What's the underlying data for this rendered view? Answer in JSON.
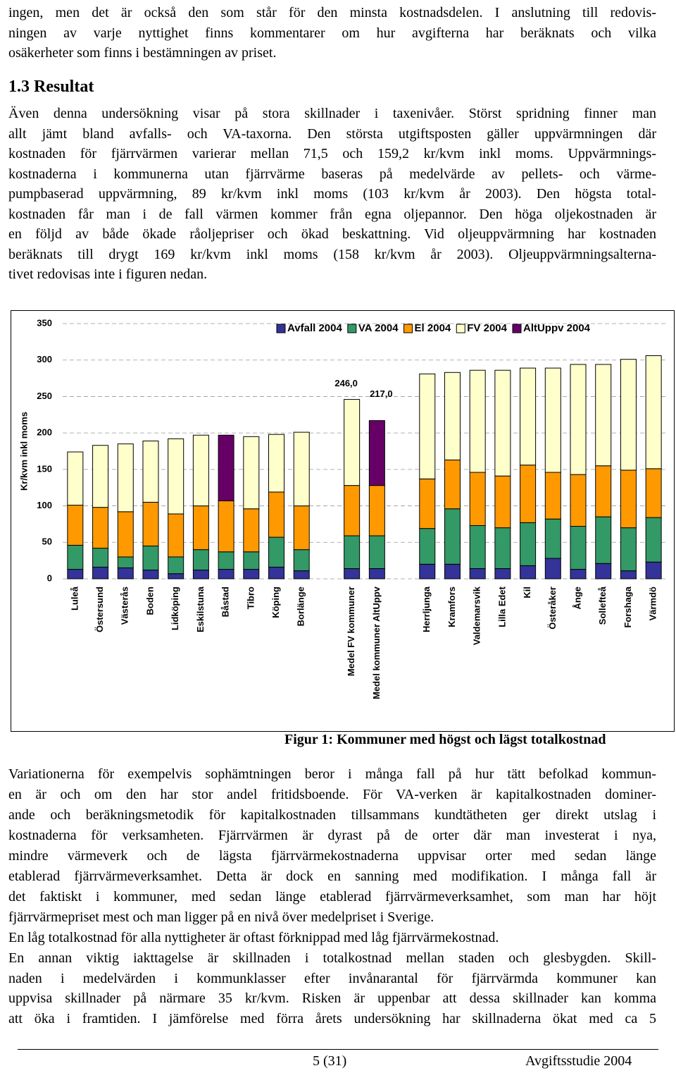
{
  "intro": [
    "ingen, men det är också den som står för den minsta kostnadsdelen. I anslutning till redovis-",
    "ningen av varje nyttighet finns kommentarer om hur avgifterna har beräknats och vilka",
    "osäkerheter som finns i bestämningen av priset."
  ],
  "section": {
    "heading": "1.3 Resultat",
    "paragraph": [
      "Även denna undersökning visar på stora skillnader i taxenivåer. Störst spridning finner man",
      "allt jämt bland avfalls- och VA-taxorna. Den största utgiftsposten gäller uppvärmningen där",
      "kostnaden för fjärrvärmen varierar mellan 71,5 och 159,2 kr/kvm inkl moms. Uppvärmnings-",
      "kostnaderna i kommunerna utan fjärrvärme baseras på medelvärde av pellets- och värme-",
      "pumpbaserad uppvärmning, 89 kr/kvm inkl moms (103 kr/kvm år 2003). Den högsta total-",
      "kostnaden får man i de fall värmen kommer från egna oljepannor. Den höga oljekostnaden är",
      "en följd av både ökade råoljepriser och ökad beskattning. Vid oljeuppvärmning har kostnaden",
      "beräknats till drygt 169 kr/kvm inkl moms (158 kr/kvm år 2003). Oljeuppvärmningsalterna-",
      "tivet redovisas inte i figuren nedan."
    ]
  },
  "chart_data": {
    "type": "stacked_bar",
    "y_label": "Kr/kvm inkl moms",
    "categories": [
      "Luleå",
      "Östersund",
      "Västerås",
      "Boden",
      "Lidköping",
      "Eskilstuna",
      "Båstad",
      "Tibro",
      "Köping",
      "Borlänge",
      null,
      "Medel FV kommuner",
      "Medel kommuner AltUppv",
      null,
      "Herrljunga",
      "Kramfors",
      "Valdemarsvik",
      "Lilla Edet",
      "Kil",
      "Österåker",
      "Ånge",
      "Sollefteå",
      "Forshaga",
      "Värmdö"
    ],
    "series": [
      {
        "name": "Avfall 2004",
        "color": "#333399",
        "values": [
          13,
          16,
          15,
          12,
          7,
          12,
          13,
          13,
          16,
          11,
          null,
          14,
          14,
          null,
          20,
          20,
          14,
          14,
          18,
          28,
          13,
          21,
          11,
          23
        ]
      },
      {
        "name": "VA 2004",
        "color": "#339966",
        "values": [
          33,
          26,
          15,
          33,
          23,
          28,
          24,
          24,
          41,
          29,
          null,
          45,
          45,
          null,
          49,
          76,
          59,
          56,
          59,
          54,
          59,
          64,
          59,
          61
        ]
      },
      {
        "name": "El 2004",
        "color": "#ff9900",
        "values": [
          55,
          56,
          62,
          60,
          59,
          60,
          70,
          59,
          62,
          60,
          null,
          69,
          69,
          null,
          68,
          67,
          73,
          71,
          79,
          64,
          71,
          70,
          79,
          67
        ]
      },
      {
        "name": "FV 2004",
        "color": "#ffffcc",
        "values": [
          73,
          85,
          93,
          84,
          103,
          97,
          null,
          99,
          79,
          101,
          null,
          118,
          null,
          null,
          144,
          120,
          140,
          145,
          133,
          143,
          151,
          139,
          152,
          155
        ]
      },
      {
        "name": "AltUppv 2004",
        "color": "#660066",
        "values": [
          null,
          null,
          null,
          null,
          null,
          null,
          90,
          null,
          null,
          null,
          null,
          null,
          89,
          null,
          null,
          null,
          null,
          null,
          null,
          null,
          null,
          null,
          null,
          null
        ]
      }
    ],
    "annotations": [
      "246,0",
      "217,0"
    ],
    "ylim": [
      0,
      350
    ],
    "yticks": [
      0,
      50,
      100,
      150,
      200,
      250,
      300,
      350
    ],
    "grid": true,
    "legend": "top-right"
  },
  "figure_caption": "Figur 1: Kommuner med högst och lägst totalkostnad",
  "body": [
    [
      "Variationerna för exempelvis sophämtningen beror i många fall på hur tätt befolkad kommun-",
      "en är och om den har stor andel fritidsboende. För VA-verken är kapitalkostnaden dominer-",
      "ande och beräkningsmetodik för kapitalkostnaden tillsammans kundtätheten ger direkt utslag i",
      "kostnaderna för verksamheten. Fjärrvärmen är dyrast på de orter där man investerat i nya,",
      "mindre värmeverk och de lägsta fjärrvärmekostnaderna uppvisar orter med sedan länge",
      "etablerad fjärrvärmeverksamhet. Detta är dock en sanning med modifikation. I många fall är",
      "det faktiskt i kommuner, med sedan länge etablerad fjärrvärmeverksamhet, som man har höjt",
      "fjärrvärmepriset mest och man ligger på en nivå över medelpriset i Sverige."
    ],
    [
      "En låg totalkostnad för alla nyttigheter är oftast förknippad med låg fjärrvärmekostnad."
    ],
    [
      "En annan viktig iakttagelse är skillnaden i totalkostnad mellan staden och glesbygden. Skill-",
      "naden i medelvärden i kommunklasser efter invånarantal för fjärrvärmda kommuner kan",
      "uppvisa skillnader på närmare 35 kr/kvm. Risken är uppenbar att dessa skillnader kan komma",
      "att öka i framtiden. I jämförelse med förra årets undersökning har skillnaderna ökat med ca 5"
    ]
  ],
  "footer": {
    "page": "5 (31)",
    "title": "Avgiftsstudie 2004"
  }
}
